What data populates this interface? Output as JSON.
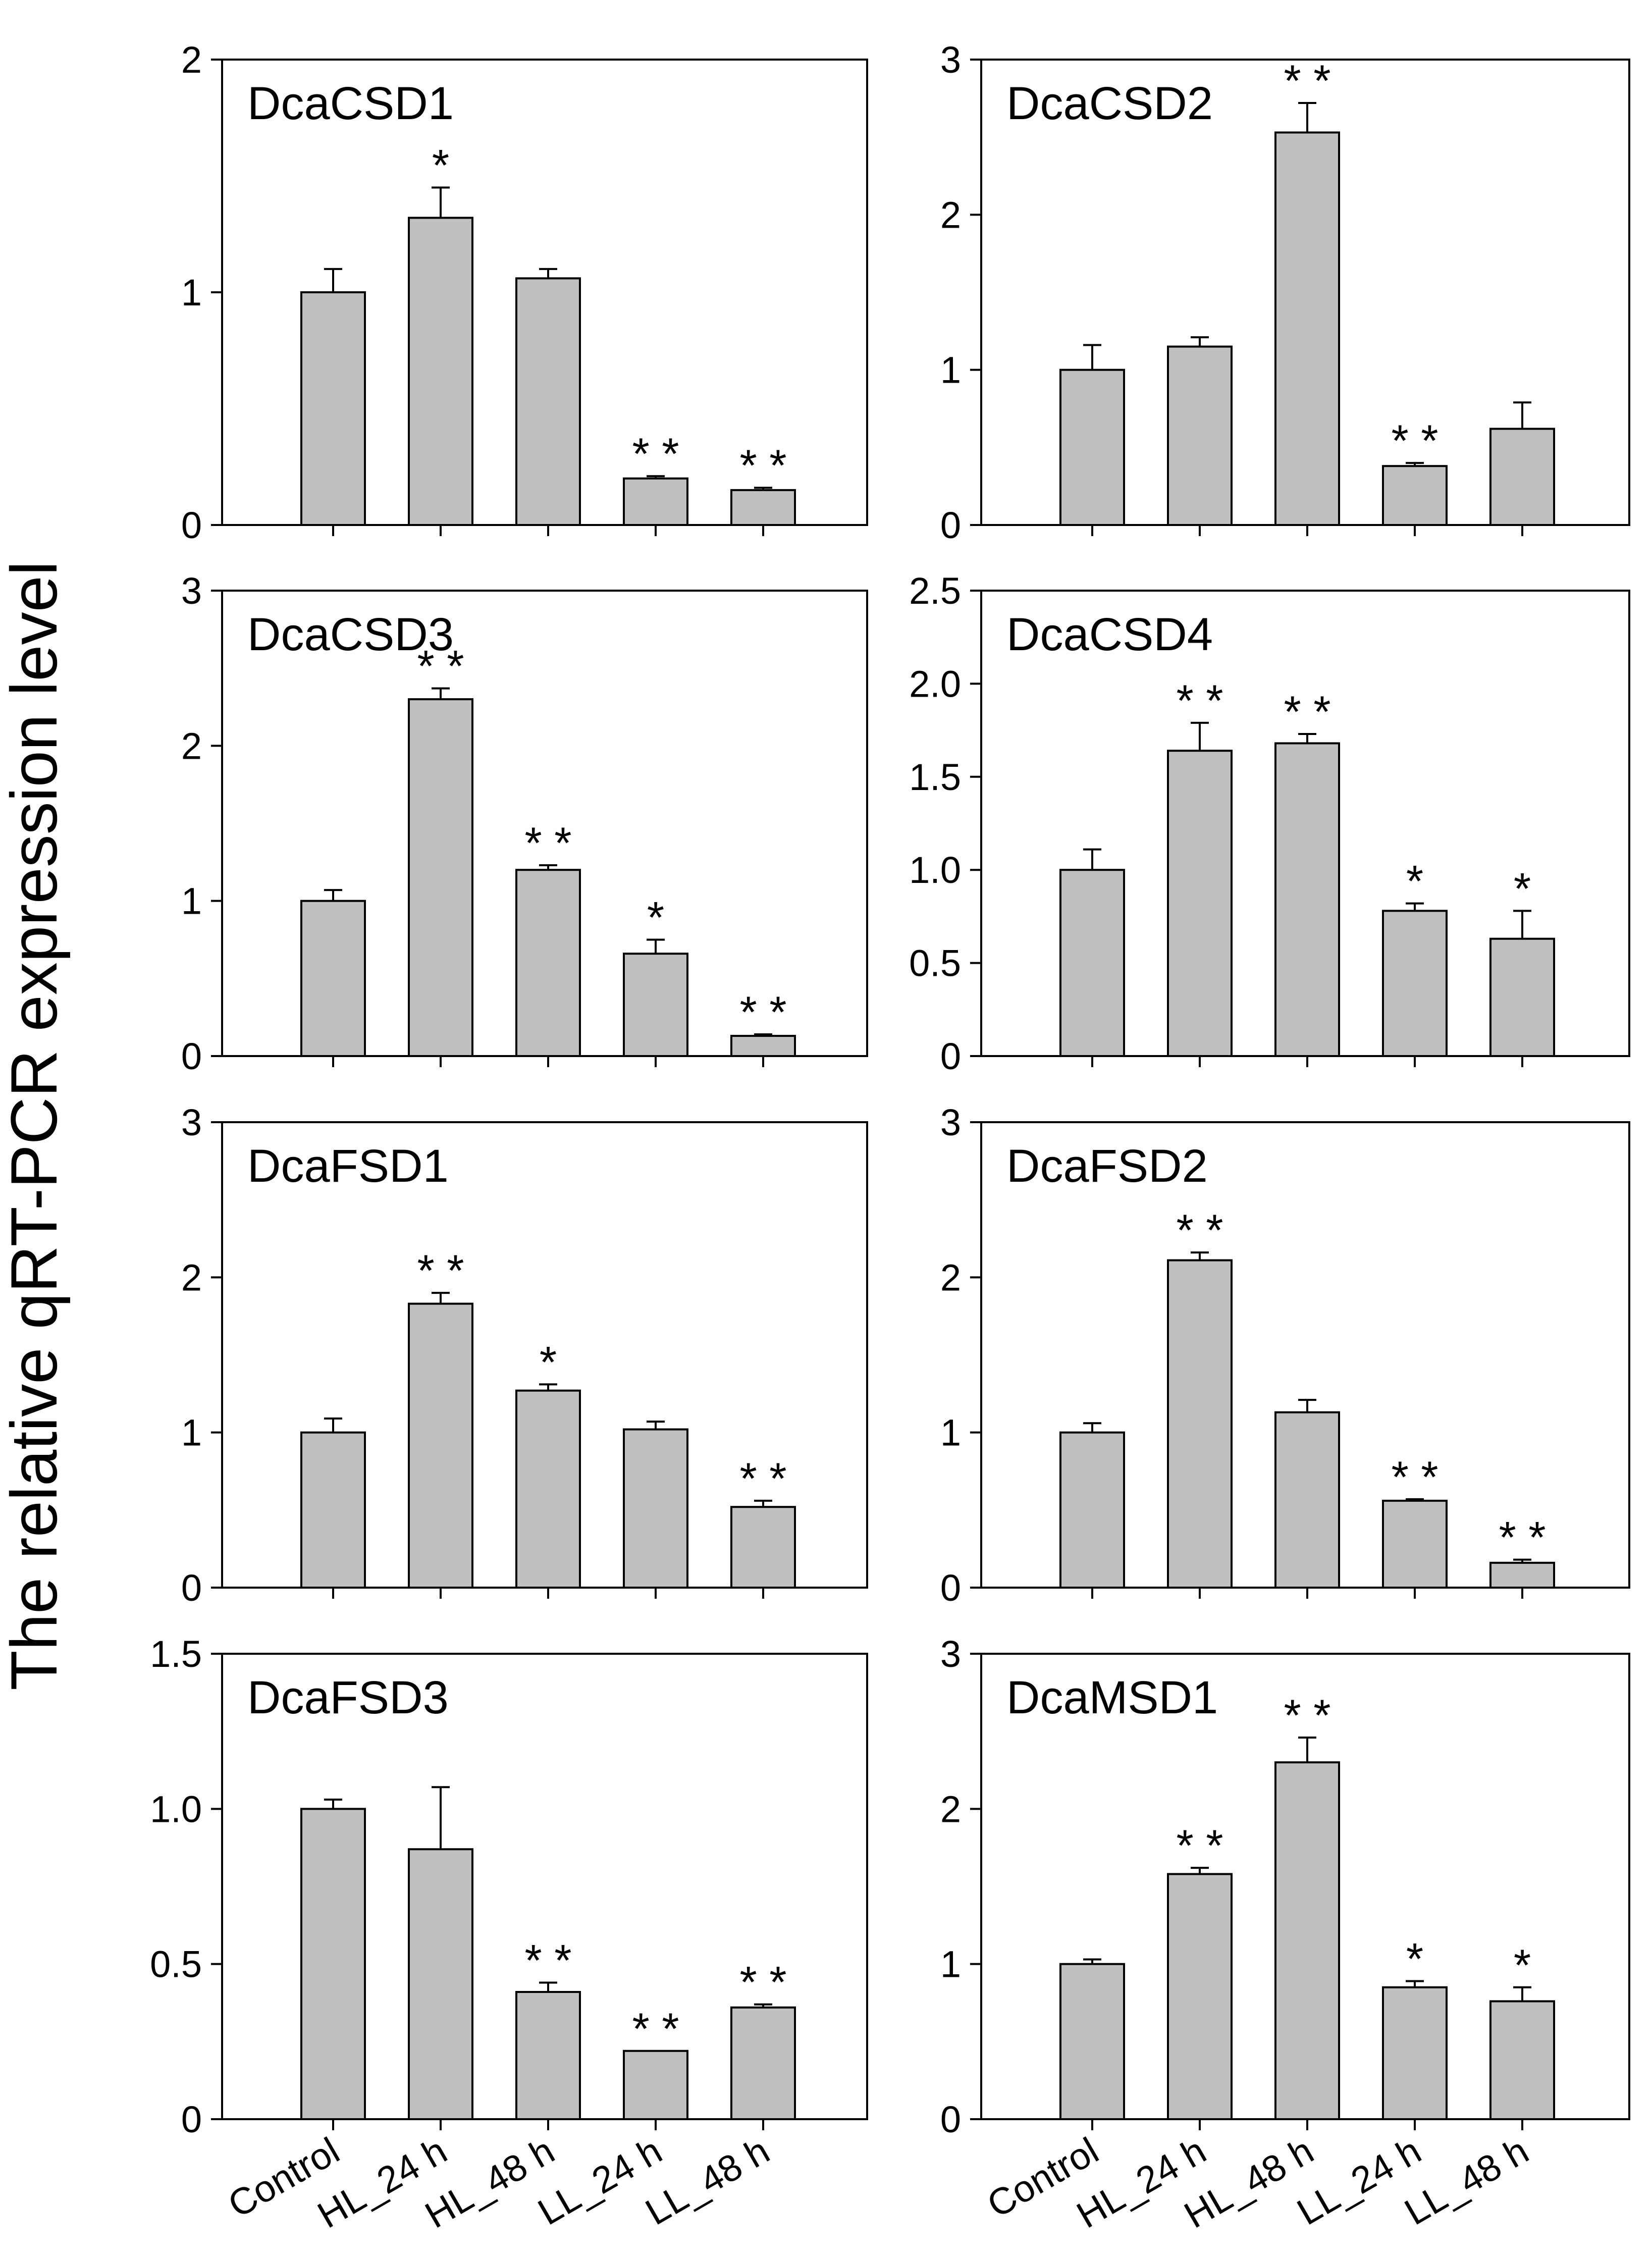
{
  "figure": {
    "ylabel": "The relative qRT-PCR expression level",
    "categories": [
      "Control",
      "HL_24 h",
      "HL_48 h",
      "LL_24 h",
      "LL_48 h"
    ]
  },
  "chart_data": [
    {
      "type": "bar",
      "title": "DcaCSD1",
      "categories": [
        "Control",
        "HL_24 h",
        "HL_48 h",
        "LL_24 h",
        "LL_48 h"
      ],
      "values": [
        1.0,
        1.32,
        1.06,
        0.2,
        0.15
      ],
      "errors": [
        0.1,
        0.13,
        0.04,
        0.01,
        0.01
      ],
      "significance": [
        "",
        "*",
        "",
        "**",
        "**"
      ],
      "ylim": [
        0,
        2
      ],
      "yticks": [
        0,
        1,
        2
      ],
      "ytick_labels": [
        "0",
        "1",
        "2"
      ],
      "xlabel": "",
      "ylabel": "The relative qRT-PCR expression level",
      "bar_color": "#c0c0c0"
    },
    {
      "type": "bar",
      "title": "DcaCSD2",
      "categories": [
        "Control",
        "HL_24 h",
        "HL_48 h",
        "LL_24 h",
        "LL_48 h"
      ],
      "values": [
        1.0,
        1.15,
        2.53,
        0.38,
        0.62
      ],
      "errors": [
        0.16,
        0.06,
        0.19,
        0.02,
        0.17
      ],
      "significance": [
        "",
        "",
        "**",
        "**",
        ""
      ],
      "ylim": [
        0,
        3
      ],
      "yticks": [
        0,
        1,
        2,
        3
      ],
      "ytick_labels": [
        "0",
        "1",
        "2",
        "3"
      ],
      "xlabel": "",
      "ylabel": "",
      "bar_color": "#c0c0c0"
    },
    {
      "type": "bar",
      "title": "DcaCSD3",
      "categories": [
        "Control",
        "HL_24 h",
        "HL_48 h",
        "LL_24 h",
        "LL_48 h"
      ],
      "values": [
        1.0,
        2.3,
        1.2,
        0.66,
        0.13
      ],
      "errors": [
        0.07,
        0.07,
        0.03,
        0.09,
        0.01
      ],
      "significance": [
        "",
        "**",
        "**",
        "*",
        "**"
      ],
      "ylim": [
        0,
        3
      ],
      "yticks": [
        0,
        1,
        2,
        3
      ],
      "ytick_labels": [
        "0",
        "1",
        "2",
        "3"
      ],
      "xlabel": "",
      "ylabel": "",
      "bar_color": "#c0c0c0"
    },
    {
      "type": "bar",
      "title": "DcaCSD4",
      "categories": [
        "Control",
        "HL_24 h",
        "HL_48 h",
        "LL_24 h",
        "LL_48 h"
      ],
      "values": [
        1.0,
        1.64,
        1.68,
        0.78,
        0.63
      ],
      "errors": [
        0.11,
        0.15,
        0.05,
        0.04,
        0.15
      ],
      "significance": [
        "",
        "**",
        "**",
        "*",
        "*"
      ],
      "ylim": [
        0,
        2.5
      ],
      "yticks": [
        0,
        0.5,
        1.0,
        1.5,
        2.0,
        2.5
      ],
      "ytick_labels": [
        "0",
        "0.5",
        "1.0",
        "1.5",
        "2.0",
        "2.5"
      ],
      "xlabel": "",
      "ylabel": "",
      "bar_color": "#c0c0c0"
    },
    {
      "type": "bar",
      "title": "DcaFSD1",
      "categories": [
        "Control",
        "HL_24 h",
        "HL_48 h",
        "LL_24 h",
        "LL_48 h"
      ],
      "values": [
        1.0,
        1.83,
        1.27,
        1.02,
        0.52
      ],
      "errors": [
        0.09,
        0.07,
        0.04,
        0.05,
        0.04
      ],
      "significance": [
        "",
        "**",
        "*",
        "",
        "**"
      ],
      "ylim": [
        0,
        3
      ],
      "yticks": [
        0,
        1,
        2,
        3
      ],
      "ytick_labels": [
        "0",
        "1",
        "2",
        "3"
      ],
      "xlabel": "",
      "ylabel": "",
      "bar_color": "#c0c0c0"
    },
    {
      "type": "bar",
      "title": "DcaFSD2",
      "categories": [
        "Control",
        "HL_24 h",
        "HL_48 h",
        "LL_24 h",
        "LL_48 h"
      ],
      "values": [
        1.0,
        2.11,
        1.13,
        0.56,
        0.16
      ],
      "errors": [
        0.06,
        0.05,
        0.08,
        0.01,
        0.02
      ],
      "significance": [
        "",
        "**",
        "",
        "**",
        "**"
      ],
      "ylim": [
        0,
        3
      ],
      "yticks": [
        0,
        1,
        2,
        3
      ],
      "ytick_labels": [
        "0",
        "1",
        "2",
        "3"
      ],
      "xlabel": "",
      "ylabel": "",
      "bar_color": "#c0c0c0"
    },
    {
      "type": "bar",
      "title": "DcaFSD3",
      "categories": [
        "Control",
        "HL_24 h",
        "HL_48 h",
        "LL_24 h",
        "LL_48 h"
      ],
      "values": [
        1.0,
        0.87,
        0.41,
        0.22,
        0.36
      ],
      "errors": [
        0.03,
        0.2,
        0.03,
        0.0,
        0.01
      ],
      "significance": [
        "",
        "",
        "**",
        "**",
        "**"
      ],
      "ylim": [
        0,
        1.5
      ],
      "yticks": [
        0,
        0.5,
        1.0,
        1.5
      ],
      "ytick_labels": [
        "0",
        "0.5",
        "1.0",
        "1.5"
      ],
      "xlabel": "",
      "ylabel": "",
      "bar_color": "#c0c0c0"
    },
    {
      "type": "bar",
      "title": "DcaMSD1",
      "categories": [
        "Control",
        "HL_24 h",
        "HL_48 h",
        "LL_24 h",
        "LL_48 h"
      ],
      "values": [
        1.0,
        1.58,
        2.3,
        0.85,
        0.76
      ],
      "errors": [
        0.03,
        0.04,
        0.16,
        0.04,
        0.09
      ],
      "significance": [
        "",
        "**",
        "**",
        "*",
        "*"
      ],
      "ylim": [
        0,
        3
      ],
      "yticks": [
        0,
        1,
        2,
        3
      ],
      "ytick_labels": [
        "0",
        "1",
        "2",
        "3"
      ],
      "xlabel": "",
      "ylabel": "",
      "bar_color": "#c0c0c0"
    }
  ]
}
